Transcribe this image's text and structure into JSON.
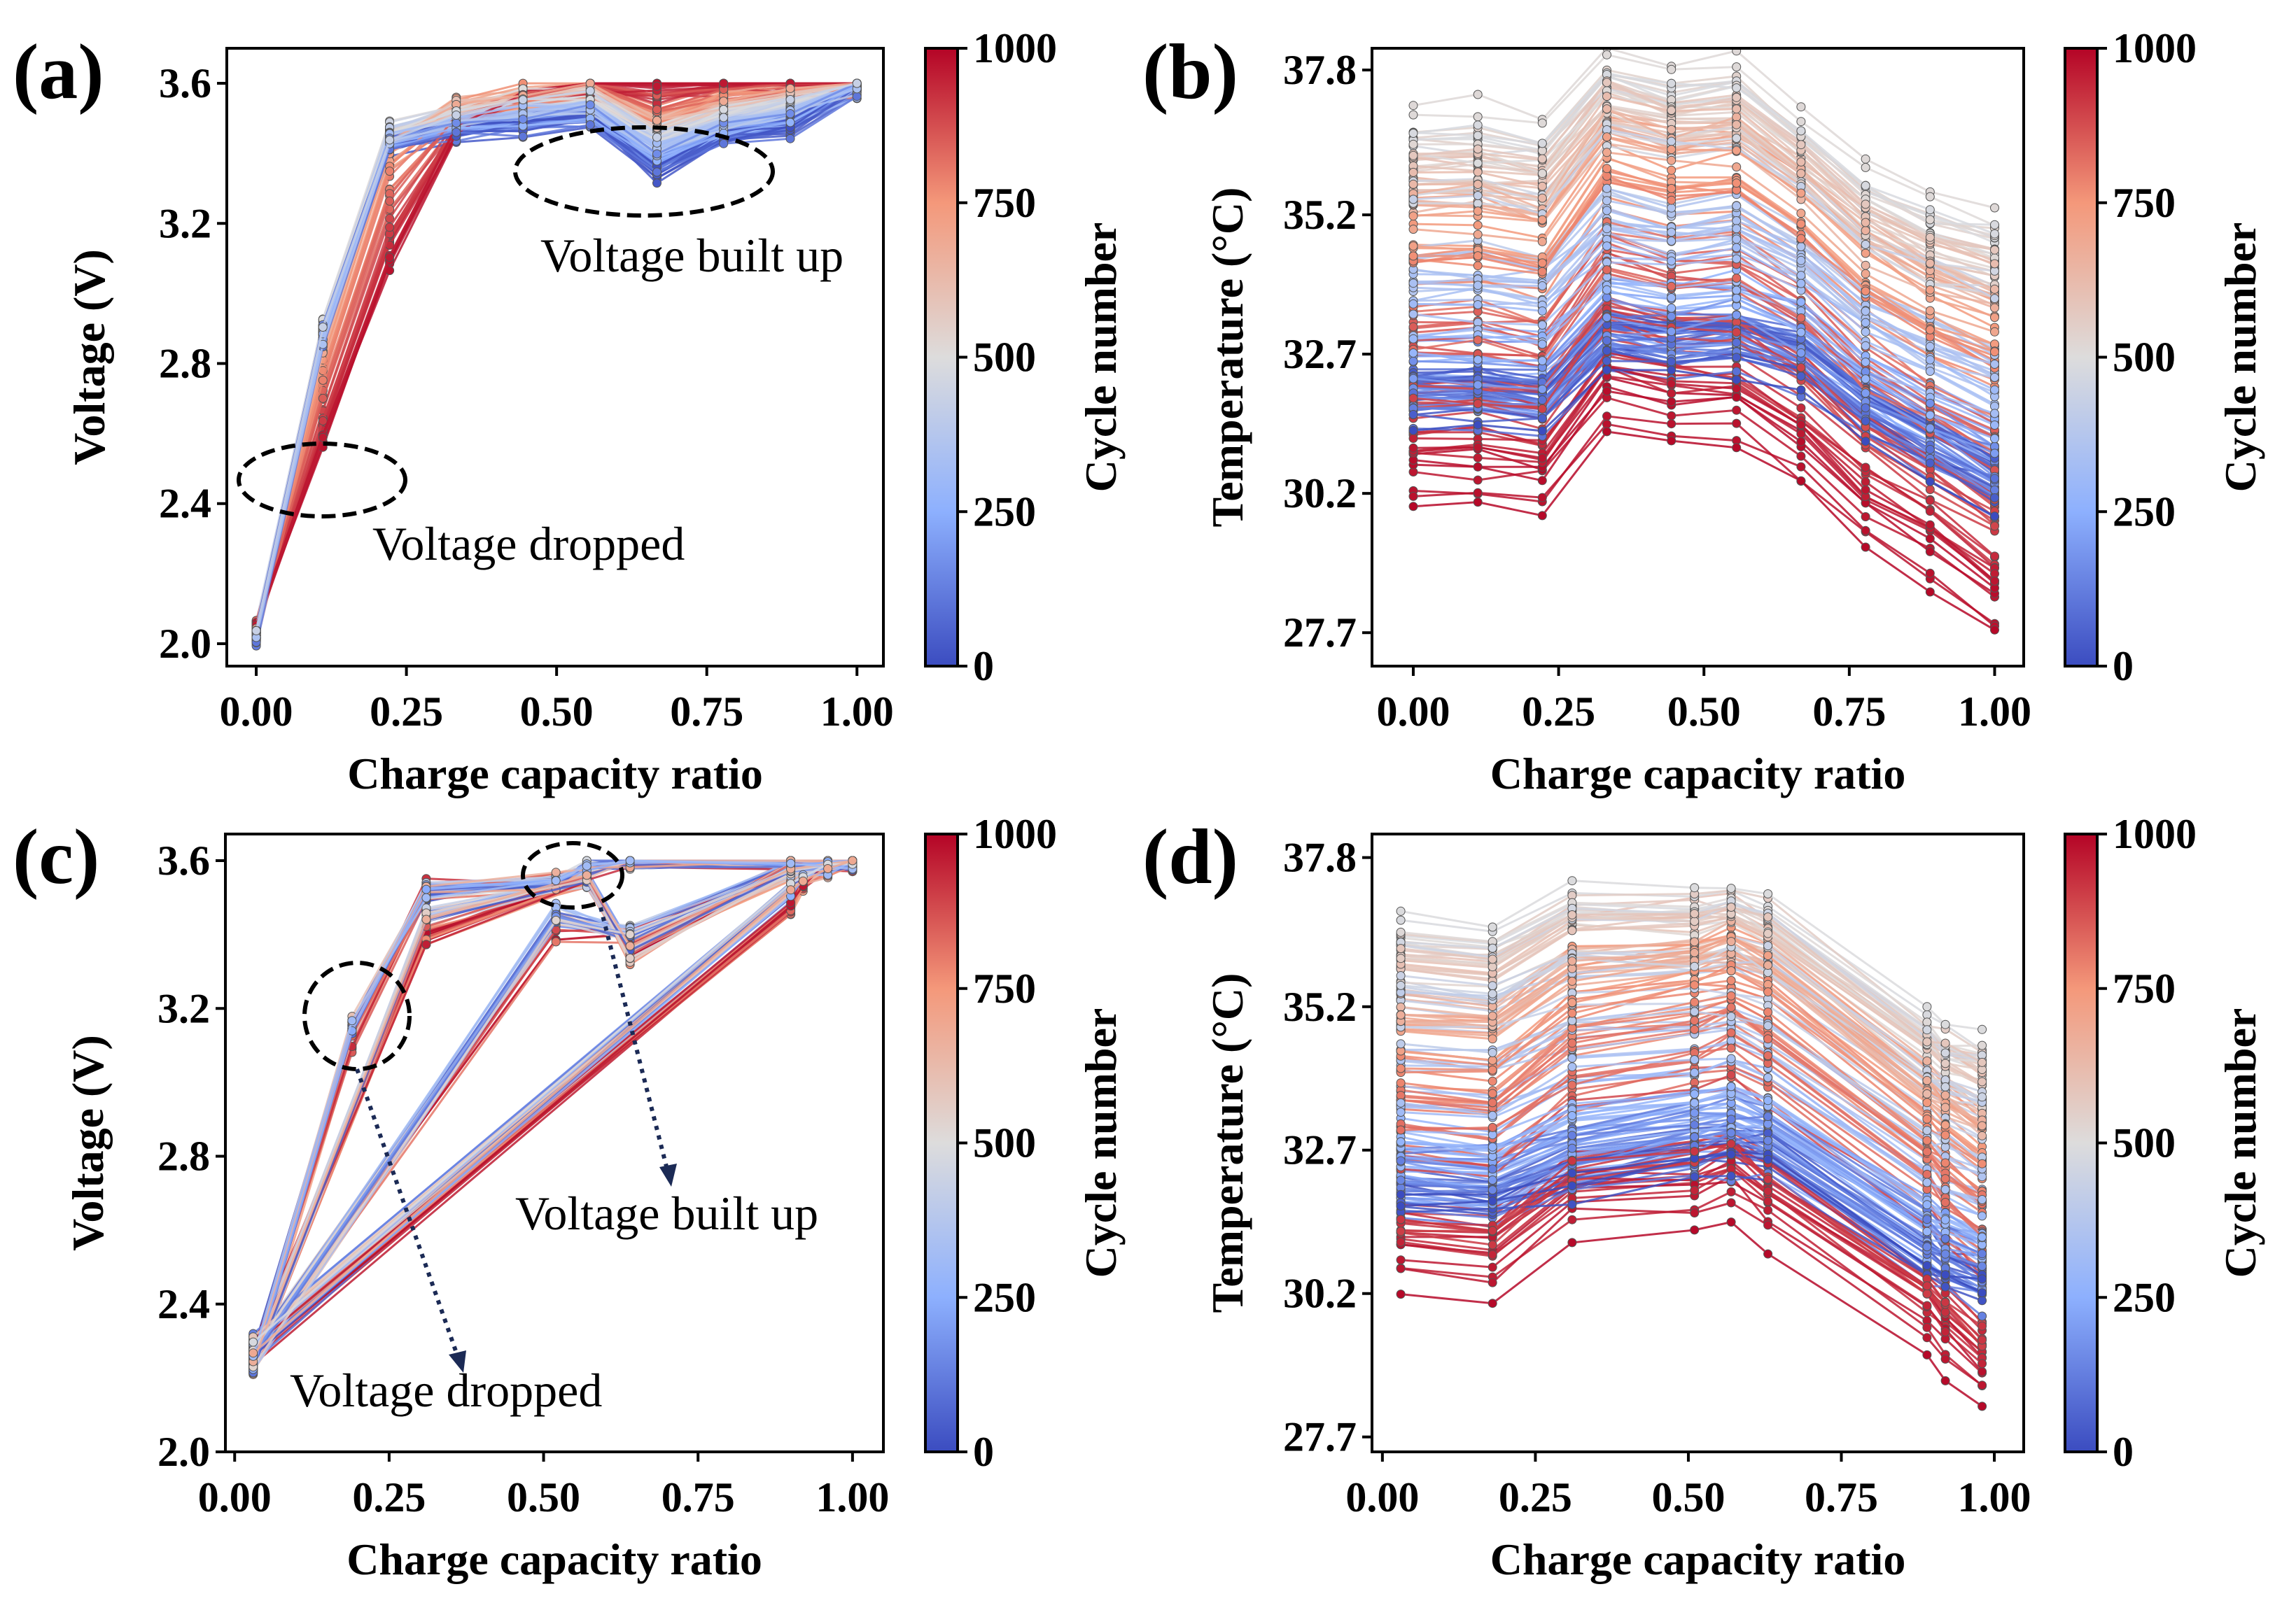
{
  "colormap": {
    "name": "coolwarm",
    "stops": [
      "#3b4cc0",
      "#8db0fe",
      "#dddcdc",
      "#f4987a",
      "#b40426"
    ]
  },
  "chart_data": [
    {
      "panel": "(a)",
      "type": "line",
      "xlabel": "Charge capacity ratio",
      "ylabel": "Voltage (V)",
      "xlim": [
        -0.049,
        1.044
      ],
      "ylim": [
        1.936,
        3.7
      ],
      "xticks": [
        0,
        0.25,
        0.5,
        0.75,
        1.0
      ],
      "xtick_labels": [
        "0.00",
        "0.25",
        "0.50",
        "0.75",
        "1.00"
      ],
      "yticks": [
        2.0,
        2.4,
        2.8,
        3.2,
        3.6
      ],
      "ytick_labels": [
        "2.0",
        "2.4",
        "2.8",
        "3.2",
        "3.6"
      ],
      "colorbar": {
        "label": "Cycle number",
        "range": [
          0,
          1000
        ],
        "ticks": [
          "0",
          "250",
          "500",
          "750",
          "1000"
        ]
      },
      "annotations": [
        "Voltage dropped",
        "Voltage built up"
      ],
      "x": [
        0,
        0.111,
        0.222,
        0.333,
        0.444,
        0.556,
        0.667,
        0.778,
        0.889,
        1.0
      ],
      "profiles": [
        {
          "cycle": 0,
          "values": [
            2.02,
            2.88,
            3.42,
            3.46,
            3.48,
            3.5,
            3.34,
            3.45,
            3.47,
            3.6
          ]
        },
        {
          "cycle": 250,
          "values": [
            2.03,
            2.87,
            3.44,
            3.48,
            3.5,
            3.52,
            3.4,
            3.47,
            3.5,
            3.6
          ]
        },
        {
          "cycle": 500,
          "values": [
            2.03,
            2.9,
            3.46,
            3.52,
            3.55,
            3.57,
            3.45,
            3.52,
            3.56,
            3.6
          ]
        },
        {
          "cycle": 750,
          "values": [
            2.04,
            2.8,
            3.4,
            3.53,
            3.56,
            3.59,
            3.5,
            3.56,
            3.58,
            3.6
          ]
        },
        {
          "cycle": 1000,
          "values": [
            2.05,
            2.55,
            3.05,
            3.45,
            3.56,
            3.6,
            3.6,
            3.6,
            3.6,
            3.6
          ]
        }
      ]
    },
    {
      "panel": "(b)",
      "type": "line",
      "xlabel": "Charge capacity ratio",
      "ylabel": "Temperature (°C)",
      "xlim": [
        -0.071,
        1.05
      ],
      "ylim": [
        27.1,
        38.19
      ],
      "xticks": [
        0,
        0.25,
        0.5,
        0.75,
        1.0
      ],
      "xtick_labels": [
        "0.00",
        "0.25",
        "0.50",
        "0.75",
        "1.00"
      ],
      "yticks": [
        27.7,
        30.2,
        32.7,
        35.2,
        37.8
      ],
      "ytick_labels": [
        "27.7",
        "30.2",
        "32.7",
        "35.2",
        "37.8"
      ],
      "colorbar": {
        "label": "Cycle number",
        "range": [
          0,
          1000
        ],
        "ticks": [
          "0",
          "250",
          "500",
          "750",
          "1000"
        ]
      },
      "x": [
        0,
        0.111,
        0.222,
        0.333,
        0.444,
        0.556,
        0.667,
        0.778,
        0.889,
        1.0
      ],
      "profiles": [
        {
          "cycle": 0,
          "values": [
            31.9,
            31.9,
            31.8,
            32.9,
            32.8,
            32.9,
            32.6,
            31.7,
            31.0,
            30.4
          ]
        },
        {
          "cycle": 250,
          "values": [
            32.3,
            32.3,
            32.2,
            33.3,
            33.2,
            33.3,
            32.9,
            32.0,
            31.4,
            30.8
          ]
        },
        {
          "cycle": 500,
          "values": [
            36.6,
            36.6,
            36.4,
            37.7,
            37.4,
            37.5,
            36.6,
            35.6,
            35.1,
            34.8
          ]
        },
        {
          "cycle": 750,
          "values": [
            34.8,
            34.8,
            34.6,
            36.3,
            36.0,
            36.1,
            35.3,
            34.2,
            33.5,
            33.0
          ]
        },
        {
          "cycle": 1000,
          "values": [
            30.2,
            30.2,
            30.1,
            31.6,
            31.3,
            31.3,
            30.6,
            29.5,
            28.8,
            27.9
          ]
        }
      ]
    },
    {
      "panel": "(c)",
      "type": "line",
      "xlabel": "Charge capacity ratio",
      "ylabel": "Voltage (V)",
      "xlim": [
        -0.015,
        1.05
      ],
      "ylim": [
        2.0,
        3.672
      ],
      "xticks": [
        0,
        0.25,
        0.5,
        0.75,
        1.0
      ],
      "xtick_labels": [
        "0.00",
        "0.25",
        "0.50",
        "0.75",
        "1.00"
      ],
      "yticks": [
        2.0,
        2.4,
        2.8,
        3.2,
        3.6
      ],
      "ytick_labels": [
        "2.0",
        "2.4",
        "2.8",
        "3.2",
        "3.6"
      ],
      "colorbar": {
        "label": "Cycle number",
        "range": [
          0,
          1000
        ],
        "ticks": [
          "0",
          "250",
          "500",
          "750",
          "1000"
        ]
      },
      "annotations": [
        "Voltage built up",
        "Voltage dropped"
      ],
      "routes": [
        {
          "x": [
            0.03,
            0.19,
            0.31,
            0.52,
            0.57,
            0.64,
            0.9,
            1.0
          ],
          "values": [
            2.24,
            3.15,
            3.52,
            3.54,
            3.58,
            3.6,
            3.6,
            3.6
          ]
        },
        {
          "x": [
            0.03,
            0.31,
            0.57,
            0.64,
            0.9,
            1.0
          ],
          "values": [
            2.25,
            3.45,
            3.55,
            3.35,
            3.58,
            3.6
          ]
        },
        {
          "x": [
            0.03,
            0.52,
            0.64,
            0.9,
            1.0
          ],
          "values": [
            2.26,
            3.45,
            3.4,
            3.58,
            3.6
          ]
        },
        {
          "x": [
            0.03,
            0.9,
            0.92,
            0.96,
            1.0
          ],
          "values": [
            2.28,
            3.52,
            3.55,
            3.58,
            3.6
          ]
        }
      ]
    },
    {
      "panel": "(d)",
      "type": "line",
      "xlabel": "Charge capacity ratio",
      "ylabel": "Temperature (°C)",
      "xlim": [
        -0.017,
        1.048
      ],
      "ylim": [
        27.44,
        38.21
      ],
      "xticks": [
        0,
        0.25,
        0.5,
        0.75,
        1.0
      ],
      "xtick_labels": [
        "0.00",
        "0.25",
        "0.50",
        "0.75",
        "1.00"
      ],
      "yticks": [
        27.7,
        30.2,
        32.7,
        35.2,
        37.8
      ],
      "ytick_labels": [
        "27.7",
        "30.2",
        "32.7",
        "35.2",
        "37.8"
      ],
      "colorbar": {
        "label": "Cycle number",
        "range": [
          0,
          1000
        ],
        "ticks": [
          "0",
          "250",
          "500",
          "750",
          "1000"
        ]
      },
      "x": [
        0.03,
        0.18,
        0.31,
        0.51,
        0.57,
        0.63,
        0.89,
        0.92,
        0.98
      ],
      "profiles": [
        {
          "cycle": 0,
          "values": [
            31.9,
            31.8,
            32.2,
            32.6,
            32.7,
            32.6,
            30.8,
            30.6,
            30.3
          ]
        },
        {
          "cycle": 250,
          "values": [
            32.3,
            32.2,
            32.8,
            33.1,
            33.2,
            33.0,
            31.2,
            31.0,
            30.7
          ]
        },
        {
          "cycle": 500,
          "values": [
            36.6,
            36.4,
            37.1,
            37.0,
            37.1,
            36.9,
            34.9,
            34.7,
            34.5
          ]
        },
        {
          "cycle": 750,
          "values": [
            34.5,
            34.4,
            35.5,
            35.9,
            36.1,
            35.8,
            33.6,
            33.3,
            32.8
          ]
        },
        {
          "cycle": 1000,
          "values": [
            30.3,
            30.2,
            31.2,
            31.3,
            31.5,
            31.0,
            29.2,
            28.8,
            28.2
          ]
        }
      ]
    }
  ]
}
